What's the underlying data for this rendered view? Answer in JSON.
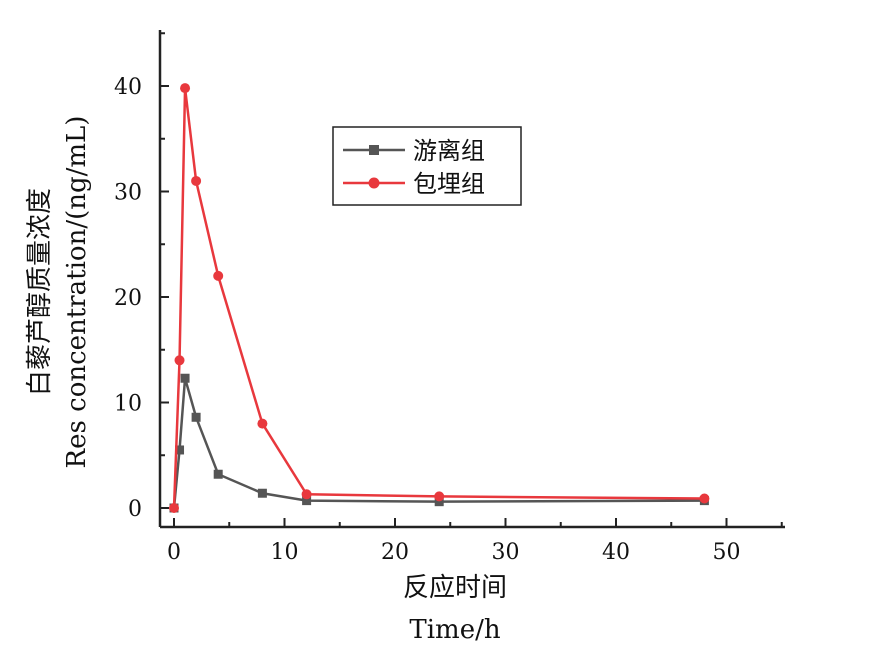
{
  "chart_data": {
    "type": "line",
    "xlabel_cn": "反应时间",
    "xlabel_en": "Time/h",
    "ylabel_cn": "白藜芦醇质量浓度",
    "ylabel_en": "Res concentration/(ng/mL)",
    "xlim": [
      -1,
      55
    ],
    "ylim": [
      -1,
      45
    ],
    "xticks": [
      0,
      10,
      20,
      30,
      40,
      50
    ],
    "yticks": [
      0,
      10,
      20,
      30,
      40
    ],
    "legend_position": "top-center",
    "series": [
      {
        "name": "游离组",
        "color": "#555555",
        "marker": "square",
        "x": [
          0,
          0.5,
          1,
          2,
          4,
          8,
          12,
          24,
          48
        ],
        "y": [
          0,
          5.5,
          12.3,
          8.6,
          3.2,
          1.4,
          0.7,
          0.6,
          0.7
        ]
      },
      {
        "name": "包埋组",
        "color": "#e8383d",
        "marker": "circle",
        "x": [
          0,
          0.5,
          1,
          2,
          4,
          8,
          12,
          24,
          48
        ],
        "y": [
          0,
          14,
          39.8,
          31,
          22,
          8,
          1.3,
          1.1,
          0.9
        ]
      }
    ]
  }
}
